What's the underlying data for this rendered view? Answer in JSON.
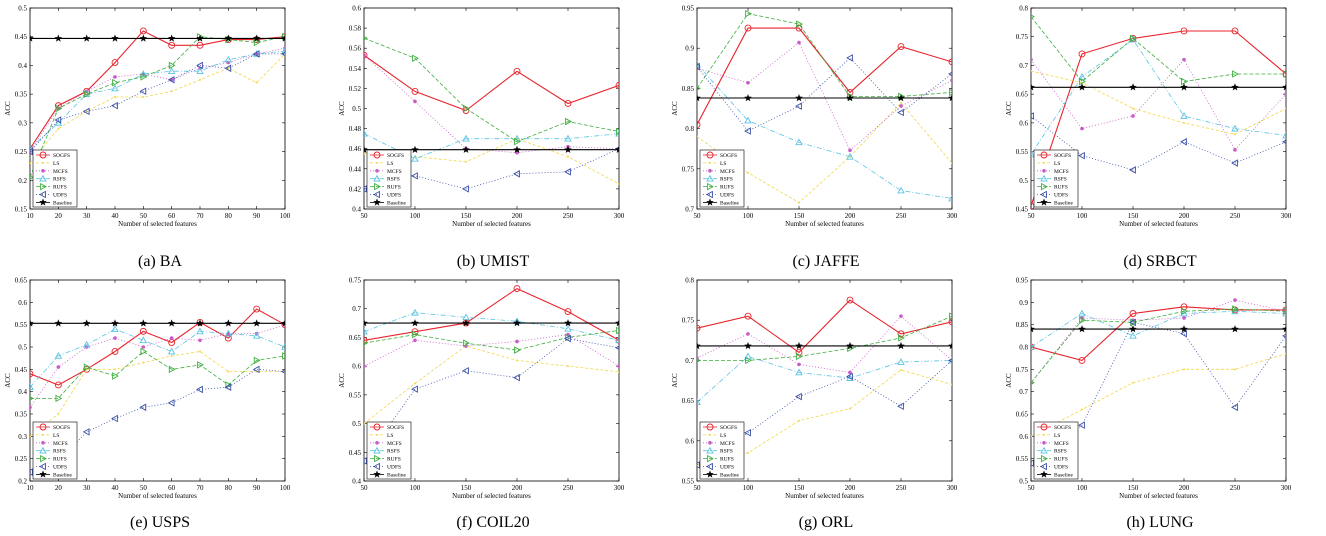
{
  "legend_labels": [
    "SOGFS",
    "LS",
    "MCFS",
    "RSFS",
    "RUFS",
    "UDFS",
    "Baseline"
  ],
  "series_styles": [
    {
      "color": "#e8242c",
      "dash": "",
      "marker": "circle"
    },
    {
      "color": "#f2d74a",
      "dash": "3,2",
      "marker": "dot"
    },
    {
      "color": "#c95bc9",
      "dash": "1,2",
      "marker": "star"
    },
    {
      "color": "#5bc3e3",
      "dash": "5,2,1,2",
      "marker": "tri-up"
    },
    {
      "color": "#3fae3f",
      "dash": "4,2",
      "marker": "tri-right"
    },
    {
      "color": "#3a4fa8",
      "dash": "1,2",
      "marker": "tri-left"
    },
    {
      "color": "#000000",
      "dash": "",
      "marker": "pentagram"
    }
  ],
  "chart_data": [
    {
      "type": "line",
      "caption": "(a)  BA",
      "ylabel": "ACC",
      "xlabel": "Number of selected features",
      "x": [
        10,
        20,
        30,
        40,
        50,
        60,
        70,
        80,
        90,
        100
      ],
      "xlim": [
        10,
        100
      ],
      "ylim": [
        0.15,
        0.5
      ],
      "xticks": [
        10,
        20,
        30,
        40,
        50,
        60,
        70,
        80,
        90,
        100
      ],
      "yticks": [
        0.15,
        0.2,
        0.25,
        0.3,
        0.35,
        0.4,
        0.45,
        0.5
      ],
      "series": [
        {
          "name": "SOGFS",
          "values": [
            0.255,
            0.33,
            0.355,
            0.405,
            0.46,
            0.435,
            0.435,
            0.445,
            0.445,
            0.45
          ]
        },
        {
          "name": "LS",
          "values": [
            0.23,
            0.29,
            0.32,
            0.345,
            0.345,
            0.355,
            0.375,
            0.395,
            0.37,
            0.42
          ]
        },
        {
          "name": "MCFS",
          "values": [
            0.25,
            0.325,
            0.355,
            0.38,
            0.385,
            0.375,
            0.395,
            0.405,
            0.42,
            0.43
          ]
        },
        {
          "name": "RSFS",
          "values": [
            0.255,
            0.3,
            0.35,
            0.36,
            0.385,
            0.39,
            0.39,
            0.41,
            0.42,
            0.425
          ]
        },
        {
          "name": "RUFS",
          "values": [
            0.205,
            0.325,
            0.35,
            0.37,
            0.38,
            0.4,
            0.45,
            0.445,
            0.44,
            0.45
          ]
        },
        {
          "name": "UDFS",
          "values": [
            0.25,
            0.305,
            0.32,
            0.33,
            0.355,
            0.375,
            0.4,
            0.395,
            0.42,
            0.42
          ]
        },
        {
          "name": "Baseline",
          "values": [
            0.447,
            0.447,
            0.447,
            0.447,
            0.447,
            0.447,
            0.447,
            0.447,
            0.447,
            0.447
          ]
        }
      ]
    },
    {
      "type": "line",
      "caption": "(b)  UMIST",
      "ylabel": "ACC",
      "xlabel": "Number of selected features",
      "x": [
        50,
        100,
        150,
        200,
        250,
        300
      ],
      "xlim": [
        50,
        300
      ],
      "ylim": [
        0.4,
        0.6
      ],
      "xticks": [
        50,
        100,
        150,
        200,
        250,
        300
      ],
      "yticks": [
        0.4,
        0.42,
        0.44,
        0.46,
        0.48,
        0.5,
        0.52,
        0.54,
        0.56,
        0.58,
        0.6
      ],
      "series": [
        {
          "name": "SOGFS",
          "values": [
            0.553,
            0.517,
            0.498,
            0.537,
            0.505,
            0.523
          ]
        },
        {
          "name": "LS",
          "values": [
            0.455,
            0.452,
            0.447,
            0.47,
            0.452,
            0.425
          ]
        },
        {
          "name": "MCFS",
          "values": [
            0.553,
            0.507,
            0.46,
            0.456,
            0.462,
            0.46
          ]
        },
        {
          "name": "RSFS",
          "values": [
            0.475,
            0.45,
            0.47,
            0.47,
            0.47,
            0.475
          ]
        },
        {
          "name": "RUFS",
          "values": [
            0.57,
            0.55,
            0.5,
            0.467,
            0.487,
            0.477
          ]
        },
        {
          "name": "UDFS",
          "values": [
            0.42,
            0.433,
            0.42,
            0.435,
            0.437,
            0.46
          ]
        },
        {
          "name": "Baseline",
          "values": [
            0.459,
            0.459,
            0.459,
            0.459,
            0.459,
            0.459
          ]
        }
      ]
    },
    {
      "type": "line",
      "caption": "(c)  JAFFE",
      "ylabel": "ACC",
      "xlabel": "Number of selected features",
      "x": [
        50,
        100,
        150,
        200,
        250,
        300
      ],
      "xlim": [
        50,
        300
      ],
      "ylim": [
        0.7,
        0.95
      ],
      "xticks": [
        50,
        100,
        150,
        200,
        250,
        300
      ],
      "yticks": [
        0.7,
        0.75,
        0.8,
        0.85,
        0.9,
        0.95
      ],
      "series": [
        {
          "name": "SOGFS",
          "values": [
            0.805,
            0.925,
            0.925,
            0.845,
            0.902,
            0.883
          ]
        },
        {
          "name": "LS",
          "values": [
            0.79,
            0.745,
            0.708,
            0.765,
            0.832,
            0.757
          ]
        },
        {
          "name": "MCFS",
          "values": [
            0.875,
            0.857,
            0.907,
            0.773,
            0.828,
            0.86
          ]
        },
        {
          "name": "RSFS",
          "values": [
            0.88,
            0.81,
            0.783,
            0.765,
            0.723,
            0.713
          ]
        },
        {
          "name": "RUFS",
          "values": [
            0.85,
            0.943,
            0.93,
            0.84,
            0.84,
            0.845
          ]
        },
        {
          "name": "UDFS",
          "values": [
            0.877,
            0.797,
            0.828,
            0.888,
            0.82,
            0.868
          ]
        },
        {
          "name": "Baseline",
          "values": [
            0.838,
            0.838,
            0.838,
            0.838,
            0.838,
            0.838
          ]
        }
      ]
    },
    {
      "type": "line",
      "caption": "(d)  SRBCT",
      "ylabel": "ACC",
      "xlabel": "Number of selected features",
      "x": [
        50,
        100,
        150,
        200,
        250,
        300
      ],
      "xlim": [
        50,
        300
      ],
      "ylim": [
        0.45,
        0.8
      ],
      "xticks": [
        50,
        100,
        150,
        200,
        250,
        300
      ],
      "yticks": [
        0.45,
        0.5,
        0.55,
        0.6,
        0.65,
        0.7,
        0.75,
        0.8
      ],
      "series": [
        {
          "name": "SOGFS",
          "values": [
            0.455,
            0.72,
            0.747,
            0.76,
            0.76,
            0.685
          ]
        },
        {
          "name": "LS",
          "values": [
            0.69,
            0.67,
            0.625,
            0.6,
            0.58,
            0.625
          ]
        },
        {
          "name": "MCFS",
          "values": [
            0.71,
            0.59,
            0.612,
            0.71,
            0.553,
            0.65
          ]
        },
        {
          "name": "RSFS",
          "values": [
            0.545,
            0.68,
            0.745,
            0.612,
            0.59,
            0.578
          ]
        },
        {
          "name": "RUFS",
          "values": [
            0.785,
            0.672,
            0.747,
            0.672,
            0.685,
            0.685
          ]
        },
        {
          "name": "UDFS",
          "values": [
            0.612,
            0.543,
            0.518,
            0.567,
            0.53,
            0.567
          ]
        },
        {
          "name": "Baseline",
          "values": [
            0.662,
            0.662,
            0.662,
            0.662,
            0.662,
            0.662
          ]
        }
      ]
    },
    {
      "type": "line",
      "caption": "(e)  USPS",
      "ylabel": "ACC",
      "xlabel": "Number of selected features",
      "x": [
        10,
        20,
        30,
        40,
        50,
        60,
        70,
        80,
        90,
        100
      ],
      "xlim": [
        10,
        100
      ],
      "ylim": [
        0.2,
        0.65
      ],
      "xticks": [
        10,
        20,
        30,
        40,
        50,
        60,
        70,
        80,
        90,
        100
      ],
      "yticks": [
        0.2,
        0.25,
        0.3,
        0.35,
        0.4,
        0.45,
        0.5,
        0.55,
        0.6,
        0.65
      ],
      "series": [
        {
          "name": "SOGFS",
          "values": [
            0.44,
            0.415,
            0.45,
            0.49,
            0.535,
            0.51,
            0.555,
            0.52,
            0.585,
            0.55
          ]
        },
        {
          "name": "LS",
          "values": [
            0.3,
            0.35,
            0.45,
            0.45,
            0.465,
            0.48,
            0.49,
            0.445,
            0.445,
            0.445
          ]
        },
        {
          "name": "MCFS",
          "values": [
            0.365,
            0.455,
            0.5,
            0.52,
            0.5,
            0.52,
            0.515,
            0.53,
            0.53,
            0.55
          ]
        },
        {
          "name": "RSFS",
          "values": [
            0.41,
            0.48,
            0.505,
            0.54,
            0.515,
            0.49,
            0.535,
            0.53,
            0.525,
            0.5
          ]
        },
        {
          "name": "RUFS",
          "values": [
            0.385,
            0.385,
            0.455,
            0.435,
            0.49,
            0.45,
            0.46,
            0.415,
            0.47,
            0.48
          ]
        },
        {
          "name": "UDFS",
          "values": [
            0.22,
            0.245,
            0.31,
            0.34,
            0.365,
            0.375,
            0.405,
            0.41,
            0.45,
            0.445
          ]
        },
        {
          "name": "Baseline",
          "values": [
            0.553,
            0.553,
            0.553,
            0.553,
            0.553,
            0.553,
            0.553,
            0.553,
            0.553,
            0.553
          ]
        }
      ]
    },
    {
      "type": "line",
      "caption": "(f)  COIL20",
      "ylabel": "ACC",
      "xlabel": "Number of selected features",
      "x": [
        50,
        100,
        150,
        200,
        250,
        300
      ],
      "xlim": [
        50,
        300
      ],
      "ylim": [
        0.4,
        0.75
      ],
      "xticks": [
        50,
        100,
        150,
        200,
        250,
        300
      ],
      "yticks": [
        0.4,
        0.45,
        0.5,
        0.55,
        0.6,
        0.65,
        0.7,
        0.75
      ],
      "series": [
        {
          "name": "SOGFS",
          "values": [
            0.645,
            0.66,
            0.675,
            0.735,
            0.695,
            0.645
          ]
        },
        {
          "name": "LS",
          "values": [
            0.5,
            0.57,
            0.635,
            0.61,
            0.6,
            0.59
          ]
        },
        {
          "name": "MCFS",
          "values": [
            0.6,
            0.645,
            0.635,
            0.643,
            0.655,
            0.6
          ]
        },
        {
          "name": "RSFS",
          "values": [
            0.66,
            0.693,
            0.685,
            0.678,
            0.665,
            0.645
          ]
        },
        {
          "name": "RUFS",
          "values": [
            0.64,
            0.655,
            0.64,
            0.628,
            0.65,
            0.662
          ]
        },
        {
          "name": "UDFS",
          "values": [
            0.435,
            0.56,
            0.592,
            0.58,
            0.648,
            0.632
          ]
        },
        {
          "name": "Baseline",
          "values": [
            0.675,
            0.675,
            0.675,
            0.675,
            0.675,
            0.675
          ]
        }
      ]
    },
    {
      "type": "line",
      "caption": "(g)  ORL",
      "ylabel": "ACC",
      "xlabel": "Number of selected features",
      "x": [
        50,
        100,
        150,
        200,
        250,
        300
      ],
      "xlim": [
        50,
        300
      ],
      "ylim": [
        0.55,
        0.8
      ],
      "xticks": [
        50,
        100,
        150,
        200,
        250,
        300
      ],
      "yticks": [
        0.55,
        0.6,
        0.65,
        0.7,
        0.75,
        0.8
      ],
      "series": [
        {
          "name": "SOGFS",
          "values": [
            0.74,
            0.755,
            0.71,
            0.775,
            0.733,
            0.748
          ]
        },
        {
          "name": "LS",
          "values": [
            0.57,
            0.585,
            0.625,
            0.64,
            0.688,
            0.67
          ]
        },
        {
          "name": "MCFS",
          "values": [
            0.703,
            0.733,
            0.695,
            0.685,
            0.755,
            0.7
          ]
        },
        {
          "name": "RSFS",
          "values": [
            0.648,
            0.705,
            0.685,
            0.678,
            0.698,
            0.7
          ]
        },
        {
          "name": "RUFS",
          "values": [
            0.7,
            0.7,
            0.705,
            0.715,
            0.728,
            0.755
          ]
        },
        {
          "name": "UDFS",
          "values": [
            0.57,
            0.61,
            0.655,
            0.68,
            0.643,
            0.7
          ]
        },
        {
          "name": "Baseline",
          "values": [
            0.718,
            0.718,
            0.718,
            0.718,
            0.718,
            0.718
          ]
        }
      ]
    },
    {
      "type": "line",
      "caption": "(h)  LUNG",
      "ylabel": "ACC",
      "xlabel": "Number of selected features",
      "x": [
        50,
        100,
        150,
        200,
        250,
        300
      ],
      "xlim": [
        50,
        300
      ],
      "ylim": [
        0.5,
        0.95
      ],
      "xticks": [
        50,
        100,
        150,
        200,
        250,
        300
      ],
      "yticks": [
        0.5,
        0.55,
        0.6,
        0.65,
        0.7,
        0.75,
        0.8,
        0.85,
        0.9,
        0.95
      ],
      "series": [
        {
          "name": "SOGFS",
          "values": [
            0.8,
            0.77,
            0.875,
            0.89,
            0.883,
            0.883
          ]
        },
        {
          "name": "LS",
          "values": [
            0.6,
            0.66,
            0.72,
            0.75,
            0.75,
            0.785
          ]
        },
        {
          "name": "MCFS",
          "values": [
            0.72,
            0.865,
            0.86,
            0.865,
            0.905,
            0.88
          ]
        },
        {
          "name": "RSFS",
          "values": [
            0.8,
            0.875,
            0.825,
            0.875,
            0.88,
            0.875
          ]
        },
        {
          "name": "RUFS",
          "values": [
            0.72,
            0.86,
            0.855,
            0.88,
            0.885,
            0.88
          ]
        },
        {
          "name": "UDFS",
          "values": [
            0.54,
            0.625,
            0.855,
            0.83,
            0.665,
            0.825
          ]
        },
        {
          "name": "Baseline",
          "values": [
            0.84,
            0.84,
            0.84,
            0.84,
            0.84,
            0.84
          ]
        }
      ]
    }
  ]
}
